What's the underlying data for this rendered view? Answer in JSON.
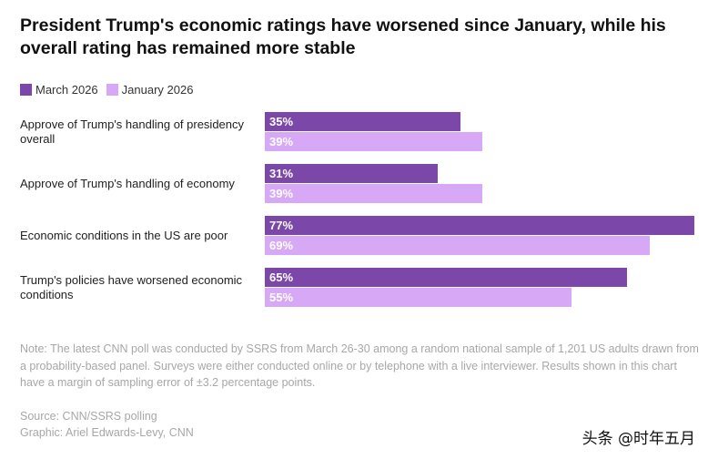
{
  "chart_data": {
    "type": "bar",
    "orientation": "horizontal",
    "title": "President Trump's economic ratings have worsened since January, while his overall rating has remained more stable",
    "categories": [
      "Approve of Trump's handling of presidency overall",
      "Approve of Trump's handling of economy",
      "Economic conditions in the US are poor",
      "Trump's policies have worsened economic conditions"
    ],
    "series": [
      {
        "name": "March 2026",
        "color": "#7b47a8",
        "values": [
          35,
          31,
          77,
          65
        ],
        "labels": [
          "35%",
          "31%",
          "77%",
          "65%"
        ]
      },
      {
        "name": "January 2026",
        "color": "#d6a8f5",
        "values": [
          39,
          39,
          69,
          55
        ],
        "labels": [
          "39%",
          "39%",
          "69%",
          "55%"
        ]
      }
    ],
    "xlim": [
      0,
      77
    ],
    "grid": false,
    "legend_position": "top-left"
  },
  "note": "Note: The latest CNN poll was conducted by SSRS from March 26-30 among a random national sample of 1,201 US adults drawn from a probability-based panel. Surveys were either conducted online or by telephone with a live interviewer. Results shown in this chart have a margin of sampling error of ±3.2 percentage points.",
  "source": "Source: CNN/SSRS polling",
  "credit": "Graphic: Ariel Edwards-Levy, CNN",
  "watermark": "头条 @时年五月"
}
